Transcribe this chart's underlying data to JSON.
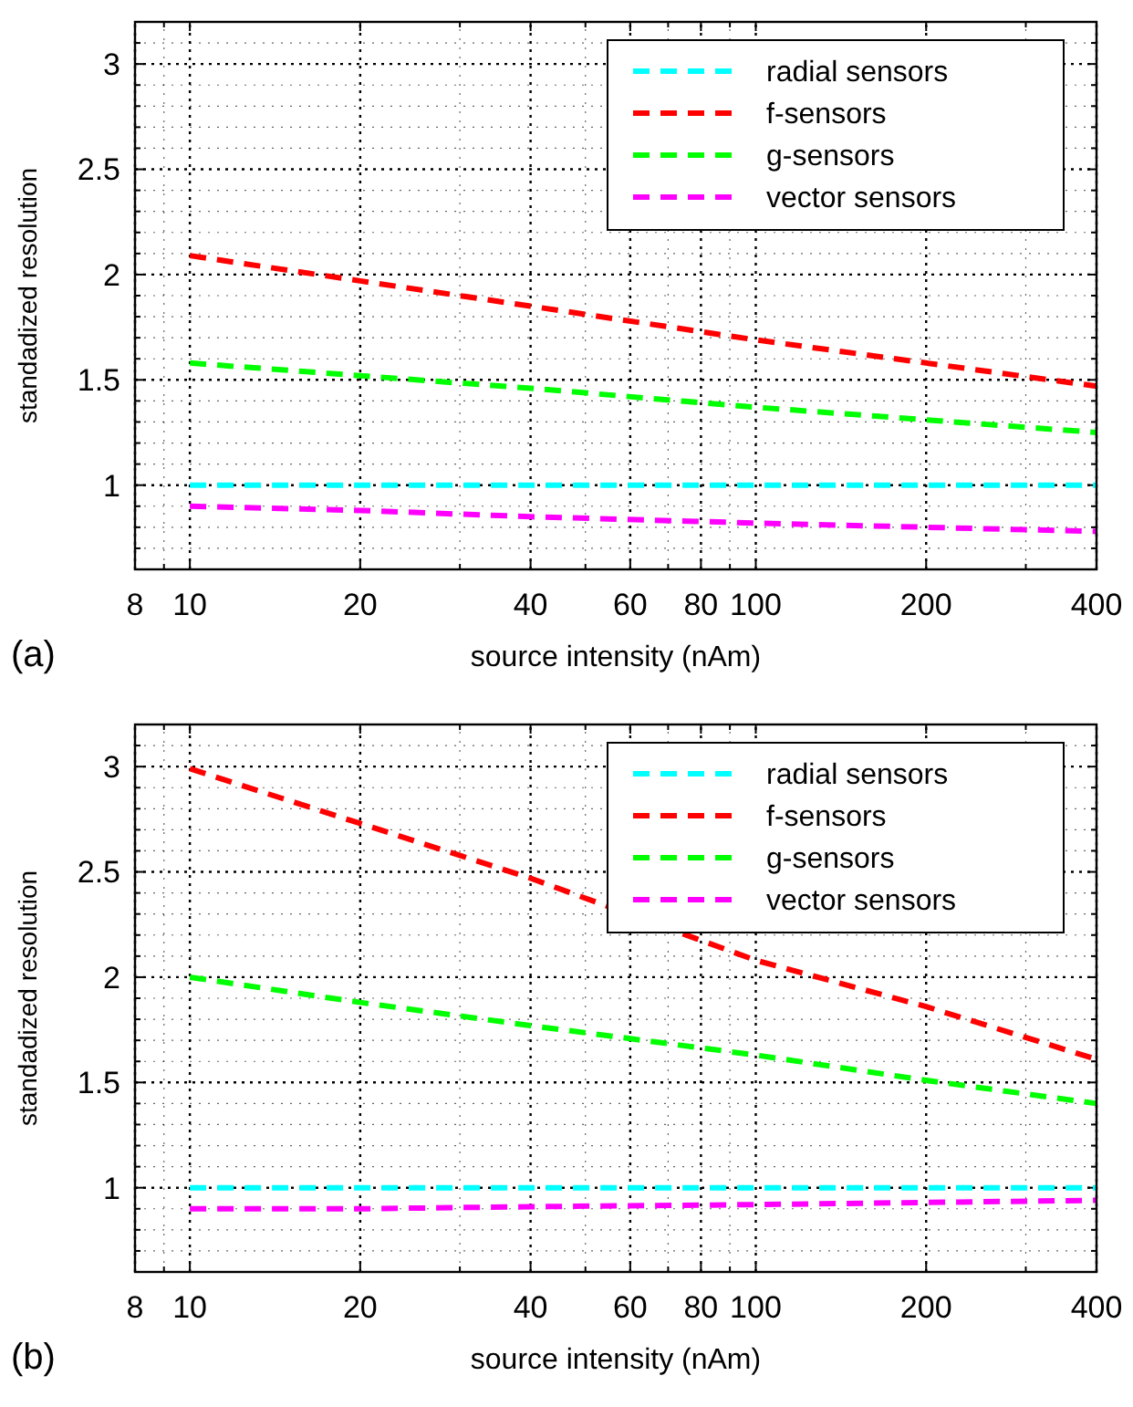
{
  "chart_data": [
    {
      "type": "line",
      "xlabel": "source intensity (nAm)",
      "ylabel": "standadized resolution",
      "annotations": [
        "(a)"
      ],
      "log": "x",
      "grid": true,
      "legend": "top right",
      "line_style": "dashed",
      "marker": "none",
      "x": [
        10,
        20,
        40,
        100,
        200,
        400
      ],
      "xlim": [
        8,
        400
      ],
      "xticks": [
        8,
        {
          "value": 9,
          "label": null
        },
        10,
        20,
        {
          "value": 30,
          "label": null
        },
        40,
        {
          "value": 50,
          "label": null
        },
        60,
        {
          "value": 70,
          "label": null
        },
        80,
        {
          "value": 90,
          "label": null
        },
        100,
        200,
        {
          "value": 300,
          "label": null
        },
        400
      ],
      "ylim": [
        0.6,
        3.2
      ],
      "yticks": [
        {
          "value": 0.7,
          "label": null
        },
        {
          "value": 0.8,
          "label": null
        },
        {
          "value": 0.9,
          "label": null
        },
        1,
        {
          "value": 1.1,
          "label": null
        },
        {
          "value": 1.2,
          "label": null
        },
        {
          "value": 1.3,
          "label": null
        },
        {
          "value": 1.4,
          "label": null
        },
        1.5,
        {
          "value": 1.6,
          "label": null
        },
        {
          "value": 1.7,
          "label": null
        },
        {
          "value": 1.8,
          "label": null
        },
        {
          "value": 1.9,
          "label": null
        },
        2,
        {
          "value": 2.1,
          "label": null
        },
        {
          "value": 2.2,
          "label": null
        },
        {
          "value": 2.3,
          "label": null
        },
        {
          "value": 2.4,
          "label": null
        },
        2.5,
        {
          "value": 2.6,
          "label": null
        },
        {
          "value": 2.7,
          "label": null
        },
        {
          "value": 2.8,
          "label": null
        },
        {
          "value": 2.9,
          "label": null
        },
        3,
        {
          "value": 3.1,
          "label": null
        }
      ],
      "series": [
        {
          "name": "radial sensors",
          "color": "#00ffff",
          "values": [
            1,
            1,
            1,
            1,
            1,
            1
          ]
        },
        {
          "name": "f-sensors",
          "color": "#ff0000",
          "values": [
            2.09,
            1.97,
            1.85,
            1.69,
            1.58,
            1.47
          ]
        },
        {
          "name": "g-sensors",
          "color": "#00ff00",
          "values": [
            1.58,
            1.52,
            1.46,
            1.37,
            1.31,
            1.25
          ]
        },
        {
          "name": "vector sensors",
          "color": "#ff00ff",
          "values": [
            0.9,
            0.88,
            0.85,
            0.82,
            0.8,
            0.78
          ]
        }
      ]
    },
    {
      "type": "line",
      "xlabel": "source intensity (nAm)",
      "ylabel": "standadized resolution",
      "annotations": [
        "(b)"
      ],
      "log": "x",
      "grid": true,
      "legend": "top right",
      "line_style": "dashed",
      "marker": "none",
      "x": [
        10,
        20,
        40,
        100,
        200,
        400
      ],
      "xlim": [
        8,
        400
      ],
      "xticks": [
        8,
        {
          "value": 9,
          "label": null
        },
        10,
        20,
        {
          "value": 30,
          "label": null
        },
        40,
        {
          "value": 50,
          "label": null
        },
        60,
        {
          "value": 70,
          "label": null
        },
        80,
        {
          "value": 90,
          "label": null
        },
        100,
        200,
        {
          "value": 300,
          "label": null
        },
        400
      ],
      "ylim": [
        0.6,
        3.2
      ],
      "yticks": [
        {
          "value": 0.7,
          "label": null
        },
        {
          "value": 0.8,
          "label": null
        },
        {
          "value": 0.9,
          "label": null
        },
        1,
        {
          "value": 1.1,
          "label": null
        },
        {
          "value": 1.2,
          "label": null
        },
        {
          "value": 1.3,
          "label": null
        },
        {
          "value": 1.4,
          "label": null
        },
        1.5,
        {
          "value": 1.6,
          "label": null
        },
        {
          "value": 1.7,
          "label": null
        },
        {
          "value": 1.8,
          "label": null
        },
        {
          "value": 1.9,
          "label": null
        },
        2,
        {
          "value": 2.1,
          "label": null
        },
        {
          "value": 2.2,
          "label": null
        },
        {
          "value": 2.3,
          "label": null
        },
        {
          "value": 2.4,
          "label": null
        },
        2.5,
        {
          "value": 2.6,
          "label": null
        },
        {
          "value": 2.7,
          "label": null
        },
        {
          "value": 2.8,
          "label": null
        },
        {
          "value": 2.9,
          "label": null
        },
        3,
        {
          "value": 3.1,
          "label": null
        }
      ],
      "series": [
        {
          "name": "radial sensors",
          "color": "#00ffff",
          "values": [
            1,
            1,
            1,
            1,
            1,
            1
          ]
        },
        {
          "name": "f-sensors",
          "color": "#ff0000",
          "values": [
            2.99,
            2.73,
            2.47,
            2.08,
            1.86,
            1.61
          ]
        },
        {
          "name": "g-sensors",
          "color": "#00ff00",
          "values": [
            2.0,
            1.88,
            1.77,
            1.63,
            1.51,
            1.4
          ]
        },
        {
          "name": "vector sensors",
          "color": "#ff00ff",
          "values": [
            0.9,
            0.9,
            0.91,
            0.92,
            0.93,
            0.94
          ]
        }
      ]
    }
  ]
}
